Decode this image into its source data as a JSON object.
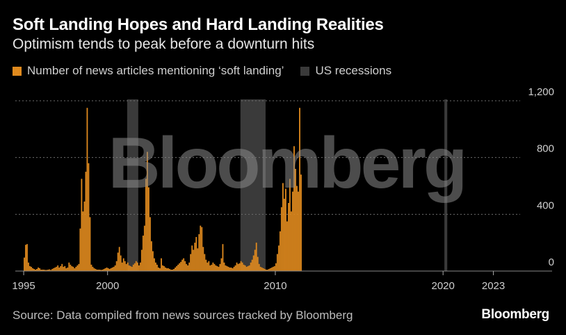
{
  "title": "Soft Landing Hopes and Hard Landing Realities",
  "subtitle": "Optimism tends to peak before a downturn hits",
  "legend": {
    "articles_label": "Number of news articles mentioning ‘soft landing’",
    "recessions_label": "US recessions"
  },
  "source": "Source: Data compiled from news sources tracked by Bloomberg",
  "brand": "Bloomberg",
  "watermark": "Bloomberg",
  "colors": {
    "bar": "#e08a1e",
    "recession": "#3a3a3a",
    "background": "#000000",
    "grid": "#6e6e6e"
  },
  "chart_data": {
    "type": "bar",
    "series": [
      {
        "name": "Number of news articles mentioning ‘soft landing’",
        "x_start": 1995.0,
        "x_step": 0.0833333,
        "values": [
          95,
          185,
          190,
          60,
          35,
          30,
          20,
          15,
          10,
          15,
          25,
          20,
          10,
          10,
          10,
          8,
          8,
          10,
          12,
          8,
          15,
          20,
          25,
          30,
          40,
          25,
          35,
          50,
          30,
          35,
          20,
          25,
          60,
          45,
          35,
          30,
          20,
          30,
          40,
          50,
          300,
          650,
          420,
          490,
          700,
          1150,
          760,
          380,
          45,
          30,
          20,
          15,
          10,
          10,
          10,
          8,
          10,
          15,
          20,
          25,
          20,
          15,
          20,
          25,
          30,
          40,
          70,
          130,
          170,
          110,
          60,
          90,
          70,
          50,
          60,
          40,
          35,
          30,
          45,
          55,
          70,
          60,
          40,
          60,
          150,
          250,
          320,
          650,
          840,
          590,
          380,
          210,
          140,
          90,
          60,
          45,
          25,
          20,
          90,
          40,
          35,
          25,
          20,
          20,
          15,
          10,
          10,
          15,
          25,
          35,
          45,
          55,
          65,
          80,
          90,
          70,
          50,
          40,
          60,
          120,
          180,
          150,
          200,
          240,
          160,
          260,
          320,
          310,
          170,
          120,
          80,
          60,
          70,
          40,
          45,
          60,
          50,
          40,
          35,
          30,
          50,
          90,
          190,
          60,
          40,
          35,
          30,
          25,
          25,
          20,
          30,
          40,
          60,
          50,
          55,
          70,
          60,
          45,
          40,
          30,
          35,
          40,
          60,
          80,
          110,
          150,
          200,
          100,
          50,
          30,
          25,
          20,
          15,
          10,
          10,
          15,
          20,
          25,
          30,
          35,
          55,
          120,
          180,
          280,
          450,
          620,
          510,
          580,
          350,
          480,
          650,
          420,
          560,
          880,
          720,
          600,
          560,
          1150,
          680
        ]
      }
    ],
    "recessions": [
      [
        2001.17,
        2001.83
      ],
      [
        2007.92,
        2009.42
      ],
      [
        2020.08,
        2020.25
      ]
    ],
    "x_ticks": [
      1995,
      2000,
      2010,
      2020,
      2023
    ],
    "x_tick_labels": [
      "1995",
      "2000",
      "2010",
      "2020",
      "2023"
    ],
    "y_ticks": [
      0,
      400,
      800,
      1200
    ],
    "y_tick_labels": [
      "0",
      "400",
      "800",
      "1,200"
    ],
    "xlim": [
      1994.5,
      2026.5
    ],
    "ylim": [
      0,
      1200
    ],
    "grid": true
  }
}
